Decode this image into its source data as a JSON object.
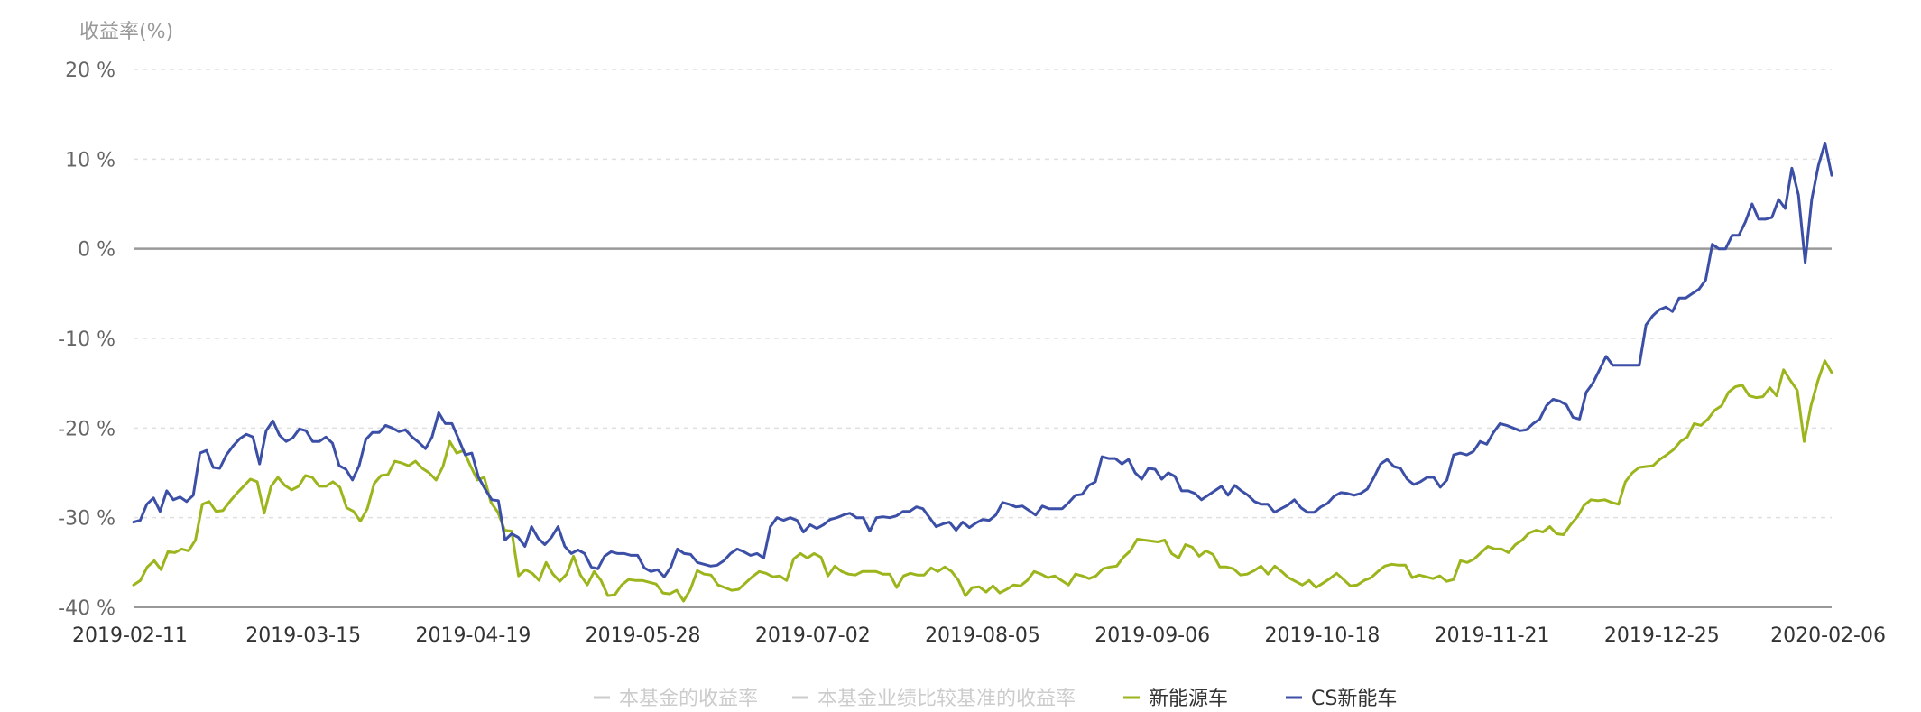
{
  "chart_data": {
    "type": "line",
    "ylabel": "收益率(%)",
    "ylim": [
      -40,
      20
    ],
    "y_ticks": [
      "20 %",
      "10 %",
      "0 %",
      "-10 %",
      "-20 %",
      "-30 %",
      "-40 %"
    ],
    "y_tick_values": [
      20,
      10,
      0,
      -10,
      -20,
      -30,
      -40
    ],
    "x_ticks": [
      "2019-02-11",
      "2019-03-15",
      "2019-04-19",
      "2019-05-28",
      "2019-07-02",
      "2019-08-05",
      "2019-09-06",
      "2019-10-18",
      "2019-11-21",
      "2019-12-25",
      "2020-02-06"
    ],
    "grid": true,
    "zero_line": true,
    "legend_position": "bottom-center",
    "series": [
      {
        "name": "本基金的收益率",
        "color": "#cccccc",
        "values": []
      },
      {
        "name": "本基金业绩比较基准的收益率",
        "color": "#cccccc",
        "values": []
      },
      {
        "name": "新能源车",
        "color": "#9bb51c",
        "values": [
          -37.5,
          -37,
          -35.5,
          -34.8,
          -35.8,
          -33.8,
          -33.9,
          -33.5,
          -33.7,
          -32.5,
          -28.5,
          -28.2,
          -29.3,
          -29.2,
          -28.2,
          -27.3,
          -26.5,
          -25.7,
          -26,
          -29.5,
          -26.5,
          -25.5,
          -26.4,
          -26.9,
          -26.5,
          -25.3,
          -25.5,
          -26.5,
          -26.5,
          -26,
          -26.6,
          -28.9,
          -29.3,
          -30.4,
          -29,
          -26.2,
          -25.3,
          -25.2,
          -23.7,
          -23.9,
          -24.2,
          -23.7,
          -24.5,
          -25,
          -25.8,
          -24.3,
          -21.5,
          -22.8,
          -22.5,
          -24.2,
          -25.8,
          -25.5,
          -28.3,
          -29.4,
          -31.4,
          -31.5,
          -36.5,
          -35.8,
          -36.2,
          -37,
          -35,
          -36.3,
          -37.1,
          -36.3,
          -34.3,
          -36.4,
          -37.5,
          -36,
          -37,
          -38.7,
          -38.6,
          -37.5,
          -36.9,
          -37,
          -37,
          -37.2,
          -37.4,
          -38.4,
          -38.5,
          -38.1,
          -39.3,
          -38,
          -35.9,
          -36.3,
          -36.4,
          -37.5,
          -37.8,
          -38.1,
          -38,
          -37.3,
          -36.6,
          -36,
          -36.2,
          -36.6,
          -36.5,
          -37,
          -34.6,
          -34,
          -34.5,
          -34,
          -34.4,
          -36.5,
          -35.4,
          -36,
          -36.3,
          -36.4,
          -36,
          -36,
          -36,
          -36.3,
          -36.3,
          -37.8,
          -36.5,
          -36.2,
          -36.4,
          -36.4,
          -35.6,
          -36,
          -35.5,
          -36,
          -37,
          -38.7,
          -37.8,
          -37.7,
          -38.3,
          -37.6,
          -38.4,
          -38,
          -37.5,
          -37.6,
          -37,
          -36,
          -36.3,
          -36.7,
          -36.5,
          -37,
          -37.5,
          -36.3,
          -36.5,
          -36.8,
          -36.5,
          -35.7,
          -35.5,
          -35.4,
          -34.4,
          -33.7,
          -32.4,
          -32.5,
          -32.6,
          -32.7,
          -32.5,
          -34,
          -34.5,
          -33,
          -33.3,
          -34.3,
          -33.7,
          -34.1,
          -35.5,
          -35.5,
          -35.7,
          -36.4,
          -36.3,
          -35.9,
          -35.4,
          -36.3,
          -35.4,
          -36,
          -36.7,
          -37.1,
          -37.5,
          -37,
          -37.8,
          -37.3,
          -36.8,
          -36.2,
          -36.9,
          -37.6,
          -37.5,
          -37,
          -36.7,
          -36,
          -35.4,
          -35.2,
          -35.3,
          -35.3,
          -36.7,
          -36.4,
          -36.6,
          -36.8,
          -36.5,
          -37.1,
          -36.9,
          -34.8,
          -35,
          -34.6,
          -33.9,
          -33.2,
          -33.5,
          -33.5,
          -33.9,
          -33,
          -32.5,
          -31.7,
          -31.4,
          -31.6,
          -31,
          -31.8,
          -31.9,
          -30.8,
          -29.9,
          -28.6,
          -28,
          -28.1,
          -28,
          -28.3,
          -28.5,
          -26,
          -25,
          -24.4,
          -24.3,
          -24.2,
          -23.5,
          -23,
          -22.4,
          -21.5,
          -21,
          -19.5,
          -19.7,
          -19,
          -18,
          -17.5,
          -16,
          -15.4,
          -15.2,
          -16.4,
          -16.6,
          -16.5,
          -15.5,
          -16.4,
          -13.5,
          -14.7,
          -15.8,
          -21.5,
          -17.5,
          -14.7,
          -12.5,
          -13.8
        ]
      },
      {
        "name": "CS新能车",
        "color": "#3c4fa6",
        "values": [
          -30.5,
          -30.3,
          -28.5,
          -27.8,
          -29.3,
          -27,
          -28,
          -27.7,
          -28.2,
          -27.5,
          -22.8,
          -22.5,
          -24.4,
          -24.5,
          -23,
          -22,
          -21.2,
          -20.7,
          -21,
          -24,
          -20.3,
          -19.2,
          -20.8,
          -21.5,
          -21.1,
          -20.1,
          -20.3,
          -21.5,
          -21.5,
          -21,
          -21.7,
          -24.2,
          -24.6,
          -25.8,
          -24.2,
          -21.3,
          -20.5,
          -20.5,
          -19.7,
          -20,
          -20.4,
          -20.2,
          -21,
          -21.6,
          -22.3,
          -21,
          -18.3,
          -19.5,
          -19.5,
          -21.2,
          -23,
          -22.8,
          -25.5,
          -26.8,
          -28,
          -28.1,
          -32.5,
          -31.8,
          -32.2,
          -33.2,
          -31,
          -32.3,
          -33,
          -32.2,
          -31,
          -33.2,
          -34,
          -33.6,
          -34,
          -35.5,
          -35.7,
          -34.3,
          -33.8,
          -34,
          -34,
          -34.2,
          -34.2,
          -35.6,
          -36,
          -35.8,
          -36.6,
          -35.5,
          -33.5,
          -34,
          -34.1,
          -35,
          -35.2,
          -35.4,
          -35.3,
          -34.8,
          -34,
          -33.5,
          -33.8,
          -34.2,
          -34,
          -34.5,
          -31,
          -30,
          -30.3,
          -30,
          -30.3,
          -31.6,
          -30.8,
          -31.2,
          -30.8,
          -30.2,
          -30,
          -29.7,
          -29.5,
          -30,
          -30,
          -31.5,
          -30,
          -29.9,
          -30,
          -29.8,
          -29.3,
          -29.3,
          -28.8,
          -29,
          -30,
          -31,
          -30.7,
          -30.5,
          -31.4,
          -30.5,
          -31.1,
          -30.6,
          -30.2,
          -30.3,
          -29.7,
          -28.3,
          -28.5,
          -28.8,
          -28.7,
          -29.2,
          -29.7,
          -28.7,
          -29,
          -29,
          -29,
          -28.3,
          -27.5,
          -27.4,
          -26.4,
          -26,
          -23.2,
          -23.4,
          -23.4,
          -24,
          -23.5,
          -25,
          -25.7,
          -24.5,
          -24.6,
          -25.7,
          -25,
          -25.4,
          -27,
          -27,
          -27.3,
          -28,
          -27.5,
          -27,
          -26.5,
          -27.5,
          -26.4,
          -27,
          -27.5,
          -28.2,
          -28.5,
          -28.5,
          -29.4,
          -29,
          -28.6,
          -28,
          -28.9,
          -29.4,
          -29.4,
          -28.8,
          -28.4,
          -27.6,
          -27.2,
          -27.3,
          -27.5,
          -27.3,
          -26.8,
          -25.5,
          -24,
          -23.5,
          -24.3,
          -24.5,
          -25.7,
          -26.3,
          -26,
          -25.5,
          -25.5,
          -26.6,
          -25.8,
          -23,
          -22.8,
          -23,
          -22.6,
          -21.5,
          -21.8,
          -20.5,
          -19.5,
          -19.7,
          -20,
          -20.3,
          -20.2,
          -19.5,
          -19,
          -17.5,
          -16.8,
          -17,
          -17.4,
          -18.8,
          -19,
          -16,
          -15,
          -13.5,
          -12,
          -13,
          -13,
          -13,
          -13,
          -13,
          -8.5,
          -7.5,
          -6.8,
          -6.5,
          -7,
          -5.5,
          -5.5,
          -5,
          -4.5,
          -3.5,
          0.5,
          0,
          0,
          1.5,
          1.5,
          3,
          5,
          3.3,
          3.3,
          3.5,
          5.5,
          4.5,
          9,
          6,
          -1.5,
          5.5,
          9.3,
          11.8,
          8.2
        ]
      }
    ]
  }
}
